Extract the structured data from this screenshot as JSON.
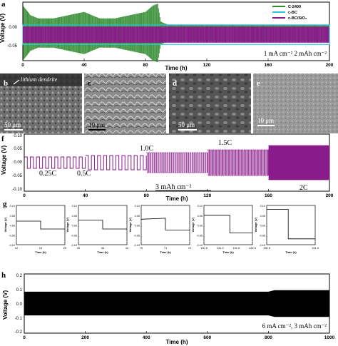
{
  "panels": {
    "a": {
      "label": "a",
      "ylabel": "Voltage (V)",
      "xlabel": "Time (h)",
      "xticks": [
        "0",
        "40",
        "80",
        "120",
        "160",
        "200"
      ],
      "yticks": [
        "0.00",
        "-0.05"
      ],
      "legend": [
        "C-2400",
        "c-BC",
        "c-BC/SiO₂"
      ],
      "condition": "1 mA cm⁻² 2 mAh cm⁻²"
    },
    "sem": [
      {
        "label": "b",
        "annotation": "lithium dendrite",
        "scale": "50 μm"
      },
      {
        "label": "c",
        "annotation": "",
        "scale": "10 μm"
      },
      {
        "label": "d",
        "annotation": "",
        "scale": "50 μm"
      },
      {
        "label": "e",
        "annotation": "",
        "scale": "10 μm"
      }
    ],
    "f": {
      "label": "f",
      "ylabel": "Voltage (V)",
      "xlabel": "Time (h)",
      "xticks": [
        "0",
        "40",
        "80",
        "120",
        "160",
        "200"
      ],
      "yticks": [
        "0.10",
        "0.05",
        "0.00",
        "-0.05",
        "-0.10"
      ],
      "rates": [
        "0.25C",
        "0.5C",
        "1.0C",
        "1.5C",
        "2C"
      ],
      "condition": "3 mAh cm⁻²"
    },
    "g": {
      "label": "g",
      "ylabel": "Voltage (V)",
      "xlabel": "Time (h)",
      "subplots": [
        {
          "xticks": [
            "12",
            "16",
            "20"
          ],
          "yticks": [
            "0.10",
            "0.05",
            "0.00",
            "-0.05",
            "-0.10"
          ]
        },
        {
          "xticks": [
            "40",
            "42",
            "44"
          ],
          "yticks": [
            "0.10",
            "0.05",
            "0.00",
            "-0.05",
            "-0.10"
          ]
        },
        {
          "xticks": [
            "70",
            "71",
            "72"
          ],
          "yticks": [
            "0.10",
            "0.05",
            "0.00",
            "-0.05",
            "-0.10"
          ]
        },
        {
          "xticks": [
            "130.5",
            "131.0",
            "131.5",
            "132.0"
          ],
          "yticks": [
            "0.10",
            "0.05",
            "0.00",
            "-0.05",
            "-0.10"
          ]
        },
        {
          "xticks": [
            "190.5",
            "191.0"
          ],
          "yticks": [
            "0.10",
            "0.05",
            "0.00",
            "-0.05",
            "-0.10"
          ]
        }
      ]
    },
    "h": {
      "label": "h",
      "ylabel": "Voltage (V)",
      "xlabel": "Time (h)",
      "xticks": [
        "0",
        "200",
        "400",
        "600",
        "800",
        "1000"
      ],
      "yticks": [
        "0.2",
        "0.1",
        "0.0",
        "-0.1",
        "-0.2"
      ],
      "condition": "6 mA cm⁻², 3 mAh cm⁻²"
    }
  },
  "chart_data": [
    {
      "type": "line",
      "panel": "a",
      "xlim": [
        0,
        200
      ],
      "ylim": [
        -0.08,
        0.1
      ],
      "series": [
        {
          "name": "C-2400",
          "color": "#2e8b2e",
          "envelope_x": [
            0,
            5,
            10,
            20,
            30,
            40,
            50,
            60,
            70,
            80,
            85,
            88,
            90,
            95,
            200
          ],
          "envelope_y": [
            0.09,
            0.06,
            0.05,
            0.05,
            0.06,
            0.07,
            0.05,
            0.05,
            0.06,
            0.07,
            0.09,
            0.095,
            0.04,
            0.03,
            0.03
          ]
        },
        {
          "name": "c-BC",
          "color": "#29c4e0",
          "envelope_x": [
            0,
            200
          ],
          "envelope_y": [
            0.03,
            0.03
          ]
        },
        {
          "name": "c-BC/SiO₂",
          "color": "#8a1b8a",
          "envelope_x": [
            0,
            200
          ],
          "envelope_y": [
            0.025,
            0.025
          ]
        }
      ]
    },
    {
      "type": "line",
      "panel": "f",
      "xlim": [
        0,
        200
      ],
      "ylim": [
        -0.1,
        0.1
      ],
      "segments": [
        {
          "rate": "0.25C",
          "x": [
            0,
            40
          ],
          "amplitude": 0.02
        },
        {
          "rate": "0.5C",
          "x": [
            40,
            80
          ],
          "amplitude": 0.025
        },
        {
          "rate": "1.0C",
          "x": [
            80,
            120
          ],
          "amplitude": 0.035
        },
        {
          "rate": "1.5C",
          "x": [
            120,
            160
          ],
          "amplitude": 0.045
        },
        {
          "rate": "2C",
          "x": [
            160,
            200
          ],
          "amplitude": 0.06
        }
      ]
    },
    {
      "type": "line",
      "panel": "g",
      "subplots": [
        {
          "xlim": [
            12,
            20
          ],
          "ylim": [
            -0.1,
            0.1
          ],
          "x": [
            12,
            16,
            16,
            20
          ],
          "y": [
            0.02,
            0.02,
            -0.02,
            -0.02
          ]
        },
        {
          "xlim": [
            40,
            44
          ],
          "ylim": [
            -0.1,
            0.1
          ],
          "x": [
            40,
            42,
            42,
            44
          ],
          "y": [
            0.025,
            0.025,
            -0.02,
            -0.02
          ]
        },
        {
          "xlim": [
            70,
            72
          ],
          "ylim": [
            -0.1,
            0.1
          ],
          "x": [
            70,
            71,
            71,
            72
          ],
          "y": [
            0.03,
            0.035,
            -0.025,
            -0.025
          ]
        },
        {
          "xlim": [
            130.5,
            132.0
          ],
          "ylim": [
            -0.1,
            0.1
          ],
          "x": [
            130.5,
            131.3,
            131.3,
            132.0
          ],
          "y": [
            0.05,
            0.05,
            -0.04,
            -0.04
          ]
        },
        {
          "xlim": [
            190.3,
            191.2
          ],
          "ylim": [
            -0.1,
            0.1
          ],
          "x": [
            190.3,
            190.7,
            190.7,
            191.2
          ],
          "y": [
            0.08,
            0.08,
            -0.07,
            -0.07
          ]
        }
      ]
    },
    {
      "type": "line",
      "panel": "h",
      "xlim": [
        0,
        1000
      ],
      "ylim": [
        -0.2,
        0.2
      ],
      "envelope_x": [
        0,
        800,
        820,
        1000
      ],
      "envelope_y": [
        0.08,
        0.08,
        0.09,
        0.09
      ]
    }
  ]
}
